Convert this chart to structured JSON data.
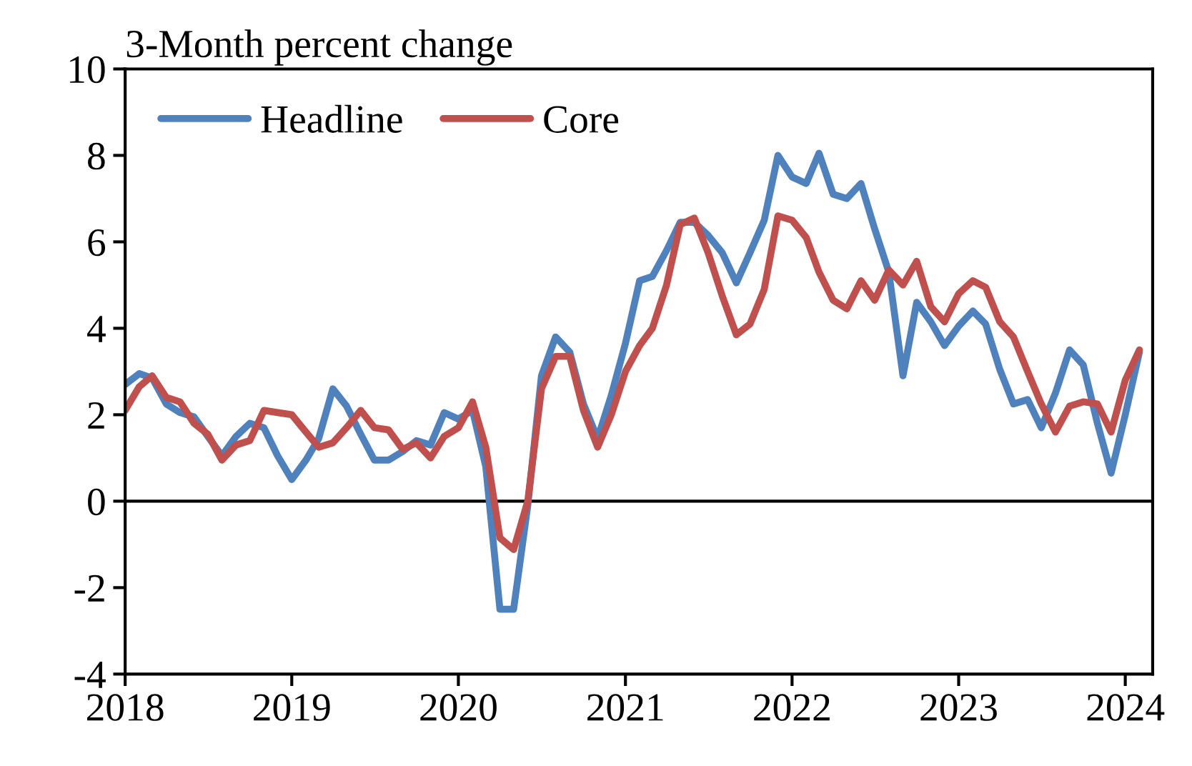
{
  "chart_data": {
    "type": "line",
    "title": "3-Month percent change",
    "x": [
      "2018-01",
      "2018-02",
      "2018-03",
      "2018-04",
      "2018-05",
      "2018-06",
      "2018-07",
      "2018-08",
      "2018-09",
      "2018-10",
      "2018-11",
      "2018-12",
      "2019-01",
      "2019-02",
      "2019-03",
      "2019-04",
      "2019-05",
      "2019-06",
      "2019-07",
      "2019-08",
      "2019-09",
      "2019-10",
      "2019-11",
      "2019-12",
      "2020-01",
      "2020-02",
      "2020-03",
      "2020-04",
      "2020-05",
      "2020-06",
      "2020-07",
      "2020-08",
      "2020-09",
      "2020-10",
      "2020-11",
      "2020-12",
      "2021-01",
      "2021-02",
      "2021-03",
      "2021-04",
      "2021-05",
      "2021-06",
      "2021-07",
      "2021-08",
      "2021-09",
      "2021-10",
      "2021-11",
      "2021-12",
      "2022-01",
      "2022-02",
      "2022-03",
      "2022-04",
      "2022-05",
      "2022-06",
      "2022-07",
      "2022-08",
      "2022-09",
      "2022-10",
      "2022-11",
      "2022-12",
      "2023-01",
      "2023-02",
      "2023-03",
      "2023-04",
      "2023-05",
      "2023-06",
      "2023-07",
      "2023-08",
      "2023-09",
      "2023-10",
      "2023-11",
      "2023-12",
      "2024-01",
      "2024-02"
    ],
    "series": [
      {
        "name": "Headline",
        "color": "#4f81bd",
        "values": [
          2.7,
          2.95,
          2.85,
          2.25,
          2.05,
          1.95,
          1.5,
          1.05,
          1.5,
          1.8,
          1.7,
          1.05,
          0.5,
          0.95,
          1.45,
          2.6,
          2.2,
          1.55,
          0.95,
          0.95,
          1.15,
          1.4,
          1.3,
          2.05,
          1.9,
          2.1,
          0.8,
          -2.5,
          -2.5,
          -0.1,
          2.9,
          3.8,
          3.45,
          2.25,
          1.45,
          2.45,
          3.65,
          5.1,
          5.2,
          5.8,
          6.45,
          6.45,
          6.15,
          5.75,
          5.05,
          5.75,
          6.5,
          8.0,
          7.5,
          7.35,
          8.05,
          7.1,
          7.0,
          7.35,
          6.3,
          5.3,
          2.9,
          4.6,
          4.15,
          3.6,
          4.05,
          4.4,
          4.1,
          3.05,
          2.25,
          2.35,
          1.7,
          2.5,
          3.5,
          3.15,
          1.8,
          0.65,
          2.0,
          3.45
        ]
      },
      {
        "name": "Core",
        "color": "#c0504d",
        "values": [
          2.1,
          2.65,
          2.9,
          2.4,
          2.3,
          1.8,
          1.55,
          0.95,
          1.3,
          1.4,
          2.1,
          2.05,
          2.0,
          1.6,
          1.25,
          1.35,
          1.7,
          2.1,
          1.7,
          1.65,
          1.2,
          1.35,
          1.0,
          1.5,
          1.7,
          2.3,
          1.25,
          -0.85,
          -1.12,
          0.0,
          2.6,
          3.35,
          3.35,
          2.1,
          1.25,
          2.0,
          3.0,
          3.6,
          4.0,
          5.0,
          6.4,
          6.55,
          5.75,
          4.75,
          3.85,
          4.1,
          4.9,
          6.6,
          6.5,
          6.1,
          5.3,
          4.65,
          4.45,
          5.1,
          4.65,
          5.35,
          5.0,
          5.55,
          4.5,
          4.15,
          4.8,
          5.1,
          4.95,
          4.15,
          3.8,
          3.0,
          2.25,
          1.6,
          2.2,
          2.3,
          2.25,
          1.6,
          2.8,
          3.5
        ]
      }
    ],
    "xlim": [
      "2018-01",
      "2024-03"
    ],
    "xticks": [
      "2018",
      "2019",
      "2020",
      "2021",
      "2022",
      "2023",
      "2024"
    ],
    "ylim": [
      -4,
      10
    ],
    "yticks": [
      -4,
      -2,
      0,
      2,
      4,
      6,
      8,
      10
    ],
    "ref_lines": [
      {
        "axis": "y",
        "value": 0,
        "color": "#000000"
      }
    ],
    "legend": "top left",
    "grid": false,
    "line_style": "solid",
    "marker": "none"
  }
}
